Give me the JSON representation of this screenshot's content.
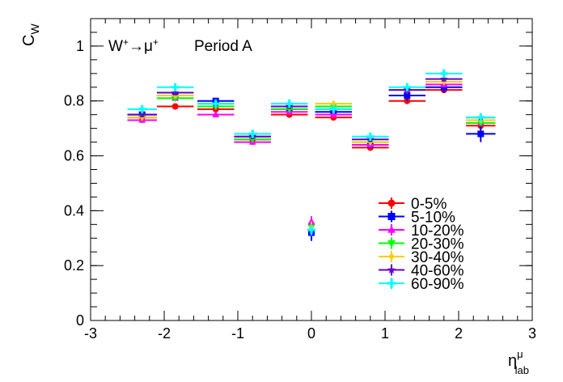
{
  "chart_data": {
    "type": "scatter",
    "title": "",
    "annotation_process": "W⁺→μ⁺",
    "annotation_period": "Period A",
    "ylabel": "C",
    "ylabel_sub": "W",
    "xlabel": "η",
    "xlabel_sup": "μ",
    "xlabel_sub": "lab",
    "xlim": [
      -3,
      3
    ],
    "ylim": [
      0,
      1.1
    ],
    "x_ticks": [
      -3,
      -2,
      -1,
      0,
      1,
      2,
      3
    ],
    "x_tick_labels": [
      "-3",
      "-2",
      "-1",
      "0",
      "1",
      "2",
      "3"
    ],
    "y_ticks": [
      0,
      0.2,
      0.4,
      0.6,
      0.8,
      1
    ],
    "y_tick_labels": [
      "0",
      "0.2",
      "0.4",
      "0.6",
      "0.8",
      "1"
    ],
    "grid": false,
    "legend_position": "bottom-right",
    "bins": [
      {
        "center": -2.3,
        "half_width": 0.2
      },
      {
        "center": -1.85,
        "half_width": 0.25
      },
      {
        "center": -1.3,
        "half_width": 0.25
      },
      {
        "center": -0.8,
        "half_width": 0.25
      },
      {
        "center": -0.3,
        "half_width": 0.25
      },
      {
        "center": 0.0,
        "half_width": 0.0
      },
      {
        "center": 0.3,
        "half_width": 0.25
      },
      {
        "center": 0.8,
        "half_width": 0.25
      },
      {
        "center": 1.3,
        "half_width": 0.25
      },
      {
        "center": 1.8,
        "half_width": 0.25
      },
      {
        "center": 2.3,
        "half_width": 0.2
      }
    ],
    "series": [
      {
        "name": "0-5%",
        "color": "#ff0000",
        "marker": "circle",
        "values": [
          0.74,
          0.78,
          0.77,
          0.66,
          0.75,
          0.35,
          0.74,
          0.63,
          0.8,
          0.84,
          0.71
        ],
        "errors": [
          0.01,
          0.01,
          0.01,
          0.01,
          0.01,
          0.02,
          0.01,
          0.01,
          0.01,
          0.01,
          0.01
        ]
      },
      {
        "name": "5-10%",
        "color": "#0000ff",
        "marker": "square",
        "values": [
          0.75,
          0.82,
          0.8,
          0.67,
          0.77,
          0.32,
          0.76,
          0.64,
          0.82,
          0.85,
          0.68
        ],
        "errors": [
          0.01,
          0.01,
          0.01,
          0.01,
          0.01,
          0.03,
          0.01,
          0.01,
          0.02,
          0.02,
          0.03
        ]
      },
      {
        "name": "10-20%",
        "color": "#ff00ff",
        "marker": "triangle-up",
        "values": [
          0.73,
          0.81,
          0.75,
          0.65,
          0.76,
          0.36,
          0.75,
          0.64,
          0.84,
          0.86,
          0.72
        ],
        "errors": [
          0.01,
          0.01,
          0.01,
          0.01,
          0.01,
          0.02,
          0.01,
          0.01,
          0.01,
          0.01,
          0.01
        ]
      },
      {
        "name": "20-30%",
        "color": "#00ff00",
        "marker": "triangle-down",
        "values": [
          0.74,
          0.81,
          0.78,
          0.66,
          0.77,
          0.34,
          0.78,
          0.65,
          0.84,
          0.87,
          0.72
        ],
        "errors": [
          0.01,
          0.01,
          0.01,
          0.01,
          0.01,
          0.02,
          0.01,
          0.01,
          0.01,
          0.01,
          0.01
        ]
      },
      {
        "name": "30-40%",
        "color": "#ffcc00",
        "marker": "diamond",
        "values": [
          0.74,
          0.82,
          0.79,
          0.67,
          0.78,
          0.34,
          0.79,
          0.65,
          0.84,
          0.87,
          0.73
        ],
        "errors": [
          0.01,
          0.01,
          0.01,
          0.01,
          0.01,
          0.02,
          0.01,
          0.01,
          0.01,
          0.01,
          0.01
        ]
      },
      {
        "name": "40-60%",
        "color": "#6600cc",
        "marker": "star",
        "values": [
          0.75,
          0.83,
          0.79,
          0.67,
          0.78,
          0.33,
          0.77,
          0.66,
          0.84,
          0.88,
          0.74
        ],
        "errors": [
          0.01,
          0.01,
          0.01,
          0.01,
          0.01,
          0.02,
          0.01,
          0.01,
          0.01,
          0.01,
          0.01
        ]
      },
      {
        "name": "60-90%",
        "color": "#00ffff",
        "marker": "cross",
        "values": [
          0.77,
          0.85,
          0.79,
          0.68,
          0.79,
          0.33,
          0.77,
          0.67,
          0.85,
          0.9,
          0.74
        ],
        "errors": [
          0.01,
          0.01,
          0.01,
          0.01,
          0.01,
          0.02,
          0.01,
          0.01,
          0.01,
          0.01,
          0.01
        ]
      }
    ]
  }
}
